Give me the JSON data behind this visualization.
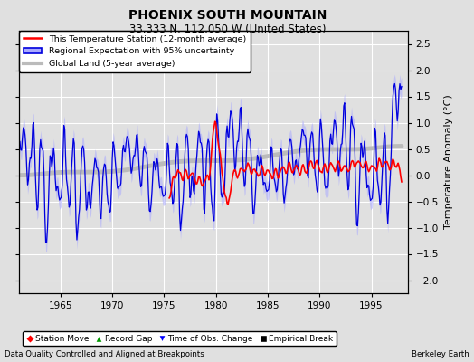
{
  "title": "PHOENIX SOUTH MOUNTAIN",
  "subtitle": "33.333 N, 112.050 W (United States)",
  "ylabel": "Temperature Anomaly (°C)",
  "xlabel_left": "Data Quality Controlled and Aligned at Breakpoints",
  "xlabel_right": "Berkeley Earth",
  "ylim": [
    -2.25,
    2.75
  ],
  "xlim": [
    1961.0,
    1998.5
  ],
  "xticks": [
    1965,
    1970,
    1975,
    1980,
    1985,
    1990,
    1995
  ],
  "yticks": [
    -2,
    -1.5,
    -1,
    -0.5,
    0,
    0.5,
    1,
    1.5,
    2,
    2.5
  ],
  "bg_color": "#e0e0e0",
  "plot_bg_color": "#e0e0e0",
  "grid_color": "#ffffff",
  "regional_line_color": "#0000dd",
  "regional_band_color": "#aaaaff",
  "station_color": "#ff0000",
  "global_color": "#bbbbbb",
  "legend_items": [
    {
      "label": "This Temperature Station (12-month average)",
      "color": "#ff0000",
      "lw": 1.5
    },
    {
      "label": "Regional Expectation with 95% uncertainty",
      "color": "#0000dd",
      "band": "#aaaaff"
    },
    {
      "label": "Global Land (5-year average)",
      "color": "#bbbbbb",
      "lw": 3
    }
  ],
  "bottom_legend": [
    {
      "label": "Station Move",
      "color": "#ff0000",
      "marker": "D"
    },
    {
      "label": "Record Gap",
      "color": "#009900",
      "marker": "^"
    },
    {
      "label": "Time of Obs. Change",
      "color": "#0000ff",
      "marker": "v"
    },
    {
      "label": "Empirical Break",
      "color": "#000000",
      "marker": "s"
    }
  ],
  "figsize": [
    5.24,
    4.0
  ],
  "dpi": 100
}
